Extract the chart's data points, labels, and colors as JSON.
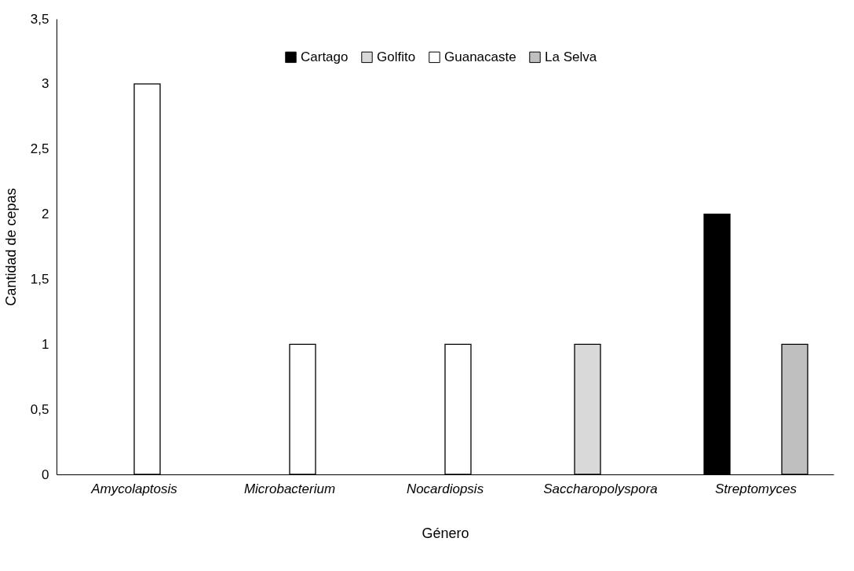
{
  "chart_data": {
    "type": "bar",
    "xlabel": "Género",
    "ylabel": "Cantidad de cepas",
    "categories": [
      "Amycolaptosis",
      "Microbacterium",
      "Nocardiopsis",
      "Saccharopolyspora",
      "Streptomyces"
    ],
    "series": [
      {
        "name": "Cartago",
        "color": "#000000",
        "values": [
          null,
          null,
          null,
          null,
          2
        ]
      },
      {
        "name": "Golfito",
        "color": "#d9d9d9",
        "values": [
          null,
          null,
          null,
          1,
          null
        ]
      },
      {
        "name": "Guanacaste",
        "color": "#ffffff",
        "values": [
          3,
          1,
          1,
          null,
          null
        ]
      },
      {
        "name": "La Selva",
        "color": "#bfbfbf",
        "values": [
          null,
          null,
          null,
          null,
          1
        ]
      }
    ],
    "ylim": [
      0,
      3.5
    ],
    "yticks": [
      0,
      {
        "value": 0.5,
        "label": "0,5"
      },
      1,
      {
        "value": 1.5,
        "label": "1,5"
      },
      2,
      {
        "value": 2.5,
        "label": "2,5"
      },
      3,
      {
        "value": 3.5,
        "label": "3,5"
      }
    ],
    "grid": false,
    "legend": "top"
  }
}
